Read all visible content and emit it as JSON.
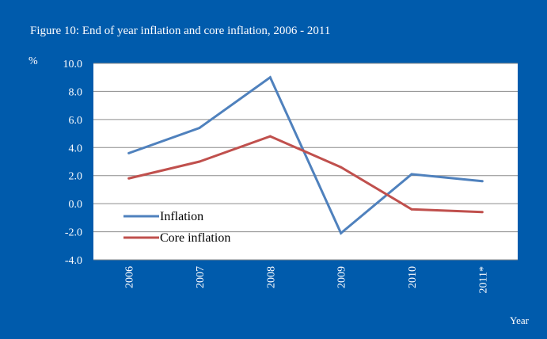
{
  "chart_data": {
    "type": "line",
    "title": "Figure 10: End of year inflation and core inflation, 2006 - 2011",
    "ylabel": "%",
    "xlabel": "Year",
    "categories": [
      "2006",
      "2007",
      "2008",
      "2009",
      "2010",
      "2011*"
    ],
    "ylim": [
      -4.0,
      10.0
    ],
    "yticks": [
      "10.0",
      "8.0",
      "6.0",
      "4.0",
      "2.0",
      "0.0",
      "-2.0",
      "-4.0"
    ],
    "grid": true,
    "legend_position": "bottom-left",
    "series": [
      {
        "name": "Inflation",
        "color": "#4f81bd",
        "values": [
          3.6,
          5.4,
          9.0,
          -2.1,
          2.1,
          1.6
        ]
      },
      {
        "name": "Core inflation",
        "color": "#c0504d",
        "values": [
          1.8,
          3.0,
          4.8,
          2.6,
          -0.4,
          -0.6
        ]
      }
    ]
  }
}
